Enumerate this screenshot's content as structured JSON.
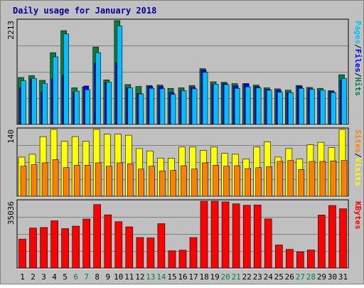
{
  "colors": {
    "frame_bg": "#c0c0c0",
    "plot_bg": "#c0c0c0",
    "title": "#0000a0",
    "hits": "#008040",
    "files": "#0000ff",
    "pages": "#00c0ff",
    "visits": "#ffff00",
    "sites": "#ff8000",
    "kbytes": "#ff0000",
    "weekday": "#000000",
    "weekend": "#008040"
  },
  "chart_data": {
    "type": "bar",
    "title": "Daily usage for January 2018",
    "days": [
      "1",
      "2",
      "3",
      "4",
      "5",
      "6",
      "7",
      "8",
      "9",
      "10",
      "11",
      "12",
      "13",
      "14",
      "15",
      "16",
      "17",
      "18",
      "19",
      "20",
      "21",
      "22",
      "23",
      "24",
      "25",
      "26",
      "27",
      "28",
      "29",
      "30",
      "31"
    ],
    "weekend_days": [
      "6",
      "7",
      "13",
      "14",
      "20",
      "21",
      "27",
      "28"
    ],
    "panels": [
      {
        "id": "top",
        "ymax_label": "2213",
        "ymax": 2213,
        "legend": [
          {
            "text": "Hits",
            "color_key": "hits"
          },
          {
            "text": "Files",
            "color_key": "files"
          },
          {
            "text": "Pages",
            "color_key": "pages"
          }
        ],
        "series": [
          {
            "name": "Hits",
            "color_key": "hits",
            "values": [
              1000,
              1040,
              940,
              1530,
              2000,
              780,
              800,
              1650,
              950,
              2213,
              850,
              810,
              830,
              840,
              770,
              780,
              830,
              1190,
              910,
              900,
              870,
              870,
              840,
              780,
              760,
              730,
              830,
              790,
              770,
              720,
              1060
            ]
          },
          {
            "name": "Files",
            "color_key": "files",
            "values": [
              780,
              970,
              690,
              980,
              1050,
              680,
              820,
              1310,
              890,
              1320,
              780,
              660,
              810,
              810,
              680,
              720,
              790,
              1160,
              860,
              870,
              820,
              870,
              810,
              750,
              730,
              680,
              810,
              760,
              720,
              700,
              940
            ]
          },
          {
            "name": "Pages",
            "color_key": "pages",
            "values": [
              930,
              980,
              870,
              1440,
              1930,
              710,
              740,
              1530,
              900,
              2100,
              780,
              650,
              770,
              760,
              640,
              720,
              760,
              1110,
              860,
              850,
              770,
              800,
              780,
              730,
              690,
              680,
              770,
              750,
              730,
              680,
              980
            ]
          }
        ]
      },
      {
        "id": "middle",
        "ymax_label": "140",
        "ymax": 140,
        "legend": [
          {
            "text": "Visits",
            "color_key": "visits"
          },
          {
            "text": "Sites",
            "color_key": "sites"
          }
        ],
        "series": [
          {
            "name": "Visits",
            "color_key": "visits",
            "values": [
              82,
              88,
              125,
              140,
              115,
              125,
              115,
              140,
              130,
              130,
              128,
              100,
              95,
              80,
              80,
              103,
              103,
              96,
              103,
              90,
              88,
              78,
              103,
              114,
              82,
              100,
              78,
              108,
              113,
              102,
              140
            ]
          },
          {
            "name": "Sites",
            "color_key": "sites",
            "values": [
              63,
              66,
              70,
              77,
              60,
              65,
              65,
              70,
              63,
              70,
              68,
              57,
              63,
              53,
              54,
              64,
              57,
              70,
              65,
              63,
              64,
              58,
              60,
              62,
              73,
              75,
              56,
              73,
              73,
              74,
              75
            ]
          }
        ]
      },
      {
        "id": "bottom",
        "ymax_label": "35036",
        "ymax": 35036,
        "legend": [
          {
            "text": "KBytes",
            "color_key": "kbytes"
          }
        ],
        "series": [
          {
            "name": "KBytes",
            "color_key": "kbytes",
            "values": [
              15200,
              21000,
              21300,
              24800,
              20700,
              22000,
              25700,
              33300,
              27900,
              24300,
              21600,
              16000,
              15800,
              23300,
              9100,
              9400,
              16000,
              35036,
              35036,
              34700,
              33700,
              32900,
              33100,
              25800,
              12100,
              9800,
              8500,
              9500,
              27800,
              32800,
              31100
            ]
          }
        ]
      }
    ]
  }
}
